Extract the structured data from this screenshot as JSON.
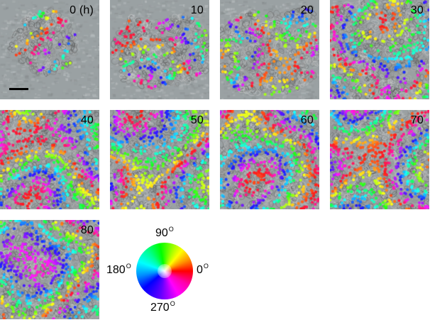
{
  "panels": [
    {
      "label": "0 (h)",
      "phase": 0
    },
    {
      "label": "10",
      "phase": 1
    },
    {
      "label": "20",
      "phase": 2
    },
    {
      "label": "30",
      "phase": 3
    },
    {
      "label": "40",
      "phase": 4
    },
    {
      "label": "50",
      "phase": 5
    },
    {
      "label": "60",
      "phase": 6
    },
    {
      "label": "70",
      "phase": 7
    },
    {
      "label": "80",
      "phase": 8
    }
  ],
  "color_wheel": {
    "top": "90",
    "left": "180",
    "right": "0",
    "bottom": "270",
    "degree_symbol": "O"
  },
  "colors": {
    "background_cells": "#8e9597",
    "scale_bar": "#000000"
  }
}
